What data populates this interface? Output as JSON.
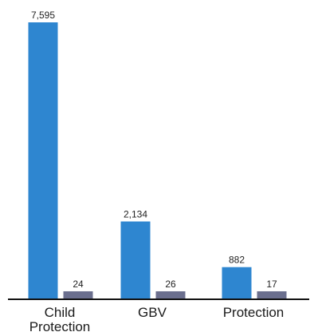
{
  "chart_data": {
    "type": "bar",
    "categories": [
      [
        "Child",
        "Protection"
      ],
      [
        "GBV"
      ],
      [
        "Protection"
      ]
    ],
    "series": [
      {
        "values": [
          7595,
          2134,
          882
        ],
        "labels": [
          "7,595",
          "2,134",
          "882"
        ],
        "color": "#2e86d0"
      },
      {
        "values": [
          24,
          26,
          17
        ],
        "labels": [
          "24",
          "26",
          "17"
        ],
        "color": "#6b6f8e"
      }
    ],
    "ylim": [
      0,
      7595
    ],
    "grid": false,
    "legend": "none",
    "axis_color": "#111111"
  }
}
